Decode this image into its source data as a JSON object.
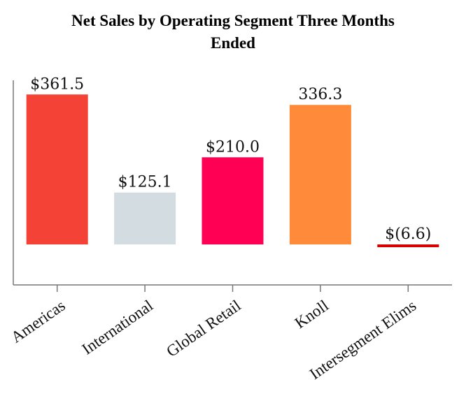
{
  "chart_data": {
    "type": "bar",
    "title_lines": [
      "Net Sales by Operating Segment Three Months",
      "Ended"
    ],
    "xlabel": "",
    "ylabel": "",
    "categories": [
      "Americas",
      "International",
      "Global Retail",
      "Knoll",
      "Intersegment Elims"
    ],
    "values": [
      361.5,
      125.1,
      210.0,
      336.3,
      -6.6
    ],
    "data_labels": [
      "$361.5",
      "$125.1",
      "$210.0",
      "336.3",
      "$(6.6)"
    ],
    "colors": [
      "#f44336",
      "#d3dce1",
      "#ff0055",
      "#fe8a3a",
      "#d50000"
    ],
    "ylim": [
      -100,
      400
    ],
    "grid": false,
    "legend": "none"
  }
}
